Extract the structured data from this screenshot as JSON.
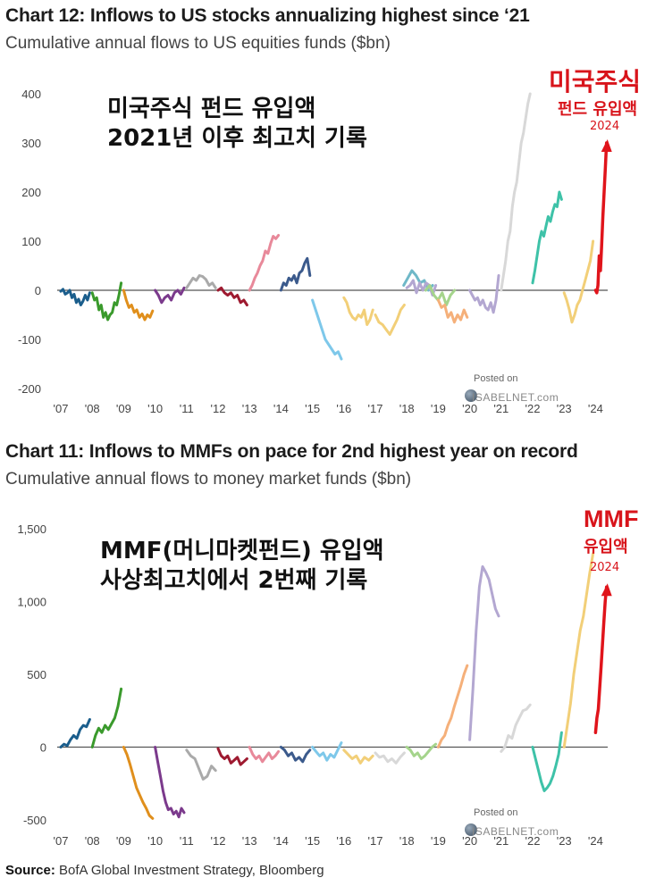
{
  "source": {
    "label": "Source:",
    "text": "BofA Global Investment Strategy, Bloomberg"
  },
  "watermark": {
    "posted": "Posted on",
    "site": "ISABELNET.com"
  },
  "charts": [
    {
      "title": "Chart 12: Inflows to US stocks annualizing highest since ‘21",
      "subtitle": "Cumulative annual flows to US equities funds ($bn)",
      "annotation": [
        "미국주식 펀드 유입액",
        "2021년 이후 최고치 기록"
      ],
      "corner": {
        "big": "미국주식",
        "sub": "펀드 유입액",
        "year": "2024"
      }
    },
    {
      "title": "Chart 11: Inflows to MMFs on pace for 2nd highest year on record",
      "subtitle": "Cumulative annual flows to money market funds ($bn)",
      "annotation": [
        "MMF(머니마켓펀드) 유입액",
        "사상최고치에서 2번째 기록"
      ],
      "corner": {
        "big": "MMF",
        "sub": "유입액",
        "year": "2024"
      }
    }
  ],
  "chart_data": [
    {
      "type": "line",
      "x_ticks": [
        "'07",
        "'08",
        "'09",
        "'10",
        "'11",
        "'12",
        "'13",
        "'14",
        "'15",
        "'16",
        "'17",
        "'18",
        "'19",
        "'20",
        "'21",
        "'22",
        "'23",
        "'24"
      ],
      "y_ticks": [
        "400",
        "300",
        "200",
        "100",
        "0",
        "-100",
        "-200"
      ],
      "ylim": [
        -200,
        400
      ],
      "series": [
        {
          "year": 2007,
          "color": "#1b5e8c",
          "values": [
            -2,
            2,
            -8,
            -5,
            0,
            -15,
            -8,
            -25,
            -18,
            -30,
            -22,
            -10,
            -20,
            -5
          ]
        },
        {
          "year": 2008,
          "color": "#3a9a2c",
          "values": [
            -5,
            -20,
            -15,
            -40,
            -30,
            -55,
            -45,
            -60,
            -50,
            -45,
            -25,
            -30,
            -10,
            15
          ]
        },
        {
          "year": 2009,
          "color": "#e08f1c",
          "values": [
            0,
            -20,
            -35,
            -30,
            -45,
            -40,
            -55,
            -48,
            -60,
            -50,
            -55,
            -42
          ]
        },
        {
          "year": 2010,
          "color": "#7b3a8c",
          "values": [
            0,
            -10,
            -25,
            -15,
            -10,
            -20,
            -5,
            0,
            -8,
            5
          ]
        },
        {
          "year": 2011,
          "color": "#aaaaaa",
          "values": [
            5,
            15,
            25,
            20,
            30,
            28,
            22,
            10,
            15,
            5
          ]
        },
        {
          "year": 2012,
          "color": "#9e1a30",
          "values": [
            0,
            5,
            -5,
            -10,
            -5,
            -15,
            -10,
            -25,
            -20,
            -30
          ]
        },
        {
          "year": 2013,
          "color": "#e8899a",
          "values": [
            0,
            10,
            25,
            35,
            50,
            60,
            80,
            75,
            95,
            110,
            105,
            112
          ]
        },
        {
          "year": 2014,
          "color": "#3b5a8c",
          "values": [
            0,
            15,
            10,
            25,
            20,
            30,
            15,
            35,
            40,
            55,
            65,
            30
          ]
        },
        {
          "year": 2015,
          "color": "#7ec8ea",
          "values": [
            -20,
            -40,
            -60,
            -80,
            -100,
            -110,
            -120,
            -130,
            -125,
            -140
          ]
        },
        {
          "year": 2016,
          "color": "#f2cf78",
          "values": [
            -15,
            -25,
            -45,
            -55,
            -60,
            -50,
            -55,
            -40,
            -70,
            -60,
            -40
          ]
        },
        {
          "year": 2017,
          "color": "#f2cf78",
          "values": [
            -50,
            -65,
            -70,
            -80,
            -90,
            -75,
            -60,
            -40,
            -30
          ]
        },
        {
          "year": 2017.9,
          "color": "#6fb8c8",
          "values": [
            10,
            25,
            40,
            30,
            15,
            20,
            0,
            10
          ]
        },
        {
          "year": 2018,
          "color": "#b3a7d1",
          "values": [
            5,
            10,
            20,
            -5,
            15,
            0,
            15,
            10,
            -10,
            10
          ]
        },
        {
          "year": 2018.6,
          "color": "#a5d48c",
          "values": [
            0,
            10,
            -10,
            -20,
            -5,
            -30,
            -10,
            0
          ]
        },
        {
          "year": 2019,
          "color": "#f5b07a",
          "values": [
            -20,
            -35,
            -30,
            -55,
            -45,
            -65,
            -50,
            -60,
            -40,
            -55
          ]
        },
        {
          "year": 2020,
          "color": "#b3a7d1",
          "values": [
            0,
            -10,
            -20,
            -15,
            -30,
            -20,
            -35,
            -40,
            -25,
            -45,
            -20,
            30
          ]
        },
        {
          "year": 2021,
          "color": "#d8d8d8",
          "values": [
            0,
            30,
            60,
            100,
            120,
            170,
            200,
            220,
            260,
            300,
            320,
            350,
            380,
            400
          ]
        },
        {
          "year": 2022,
          "color": "#3ec2a8",
          "values": [
            15,
            40,
            70,
            100,
            120,
            110,
            130,
            150,
            140,
            160,
            175,
            170,
            200,
            185
          ]
        },
        {
          "year": 2023,
          "color": "#f2cf78",
          "values": [
            -5,
            -20,
            -40,
            -65,
            -50,
            -30,
            -20,
            0,
            20,
            40,
            60,
            100
          ]
        },
        {
          "year": 2024,
          "color": "#e0141b",
          "values": [
            0,
            -5,
            10,
            70,
            40,
            90,
            150,
            200,
            250,
            300
          ]
        }
      ]
    },
    {
      "type": "line",
      "x_ticks": [
        "'07",
        "'08",
        "'09",
        "'10",
        "'11",
        "'12",
        "'13",
        "'14",
        "'15",
        "'16",
        "'17",
        "'18",
        "'19",
        "'20",
        "'21",
        "'22",
        "'23",
        "'24"
      ],
      "y_ticks": [
        "1,500",
        "1,000",
        "500",
        "0",
        "-500"
      ],
      "ylim": [
        -500,
        1500
      ],
      "series": [
        {
          "year": 2007,
          "color": "#1b5e8c",
          "values": [
            0,
            20,
            10,
            50,
            80,
            60,
            120,
            150,
            140,
            190
          ]
        },
        {
          "year": 2008,
          "color": "#3a9a2c",
          "values": [
            0,
            80,
            130,
            100,
            150,
            120,
            160,
            200,
            280,
            400
          ]
        },
        {
          "year": 2009,
          "color": "#e08f1c",
          "values": [
            0,
            -50,
            -120,
            -200,
            -280,
            -330,
            -380,
            -420,
            -470,
            -490
          ]
        },
        {
          "year": 2010,
          "color": "#7b3a8c",
          "values": [
            0,
            -100,
            -200,
            -300,
            -380,
            -430,
            -420,
            -460,
            -440,
            -480,
            -420,
            -450
          ]
        },
        {
          "year": 2011,
          "color": "#aaaaaa",
          "values": [
            -20,
            -60,
            -80,
            -150,
            -220,
            -200,
            -130,
            -160
          ]
        },
        {
          "year": 2012,
          "color": "#9e1a30",
          "values": [
            -10,
            -60,
            -80,
            -60,
            -110,
            -90,
            -70,
            -120,
            -100,
            -80
          ]
        },
        {
          "year": 2013,
          "color": "#e8899a",
          "values": [
            0,
            -50,
            -80,
            -60,
            -100,
            -70,
            -40,
            -80,
            -60,
            -30
          ]
        },
        {
          "year": 2014,
          "color": "#3b5a8c",
          "values": [
            0,
            -20,
            -60,
            -40,
            -90,
            -70,
            -100,
            -50,
            -20
          ]
        },
        {
          "year": 2015,
          "color": "#7ec8ea",
          "values": [
            0,
            -30,
            -60,
            -40,
            -90,
            -50,
            -70,
            -20,
            30
          ]
        },
        {
          "year": 2016,
          "color": "#f2cf78",
          "values": [
            -20,
            -50,
            -80,
            -60,
            -110,
            -70,
            -90,
            -60
          ]
        },
        {
          "year": 2017,
          "color": "#d8d8d8",
          "values": [
            -40,
            -70,
            -60,
            -100,
            -80,
            -110,
            -70,
            -40
          ]
        },
        {
          "year": 2018,
          "color": "#a5d48c",
          "values": [
            0,
            -20,
            -60,
            -40,
            -80,
            -60,
            -30,
            0,
            20
          ]
        },
        {
          "year": 2019,
          "color": "#f5b07a",
          "values": [
            0,
            50,
            80,
            150,
            200,
            280,
            350,
            420,
            500,
            560
          ]
        },
        {
          "year": 2020,
          "color": "#b3a7d1",
          "values": [
            50,
            400,
            800,
            1100,
            1240,
            1200,
            1150,
            1050,
            950,
            900
          ]
        },
        {
          "year": 2021,
          "color": "#d8d8d8",
          "values": [
            -30,
            0,
            80,
            60,
            150,
            200,
            250,
            260,
            290
          ]
        },
        {
          "year": 2022,
          "color": "#3ec2a8",
          "values": [
            0,
            -80,
            -160,
            -240,
            -300,
            -280,
            -250,
            -200,
            -130,
            -50,
            100
          ]
        },
        {
          "year": 2023,
          "color": "#f2cf78",
          "values": [
            0,
            150,
            300,
            500,
            650,
            800,
            900,
            1050,
            1200,
            1330
          ]
        },
        {
          "year": 2024,
          "color": "#e0141b",
          "values": [
            100,
            200,
            260,
            400,
            550,
            700,
            850,
            1000,
            1100
          ]
        }
      ]
    }
  ]
}
